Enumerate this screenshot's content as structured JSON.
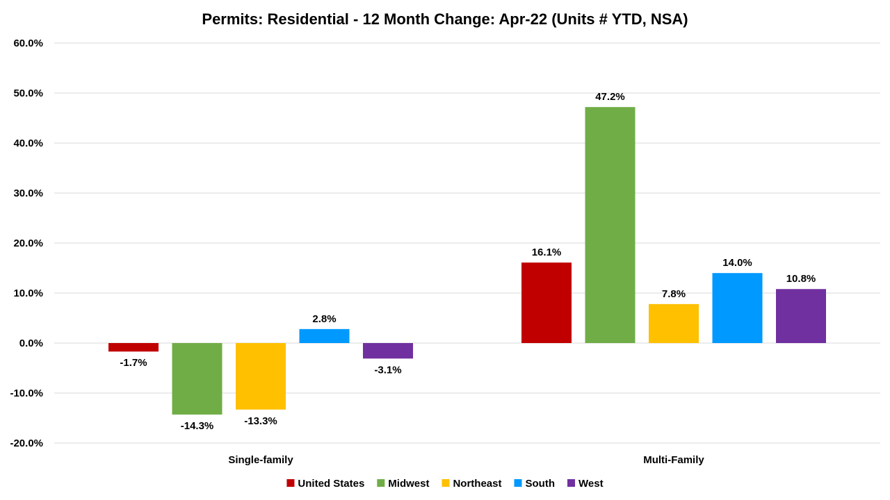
{
  "chart_data": {
    "type": "bar",
    "title": "Permits: Residential - 12 Month Change:  Apr-22 (Units # YTD, NSA)",
    "xlabel": "",
    "ylabel": "",
    "categories": [
      "Single-family",
      "Multi-Family"
    ],
    "series": [
      {
        "name": "United States",
        "color": "#c00000",
        "values": [
          -1.7,
          16.1
        ],
        "labels": [
          "-1.7%",
          "16.1%"
        ]
      },
      {
        "name": "Midwest",
        "color": "#70ad47",
        "values": [
          -14.3,
          47.2
        ],
        "labels": [
          "-14.3%",
          "47.2%"
        ]
      },
      {
        "name": "Northeast",
        "color": "#ffc000",
        "values": [
          -13.3,
          7.8
        ],
        "labels": [
          "-13.3%",
          "7.8%"
        ]
      },
      {
        "name": "South",
        "color": "#0099ff",
        "values": [
          2.8,
          14.0
        ],
        "labels": [
          "2.8%",
          "14.0%"
        ]
      },
      {
        "name": "West",
        "color": "#7030a0",
        "values": [
          -3.1,
          10.8
        ],
        "labels": [
          "-3.1%",
          "10.8%"
        ]
      }
    ],
    "ylim": [
      -20,
      60
    ],
    "yticks": [
      60,
      50,
      40,
      30,
      20,
      10,
      0,
      -10,
      -20
    ],
    "ytick_labels": [
      "60.0%",
      "50.0%",
      "40.0%",
      "30.0%",
      "20.0%",
      "10.0%",
      "0.0%",
      "-10.0%",
      "-20.0%"
    ],
    "grid": true,
    "legend_position": "bottom"
  }
}
